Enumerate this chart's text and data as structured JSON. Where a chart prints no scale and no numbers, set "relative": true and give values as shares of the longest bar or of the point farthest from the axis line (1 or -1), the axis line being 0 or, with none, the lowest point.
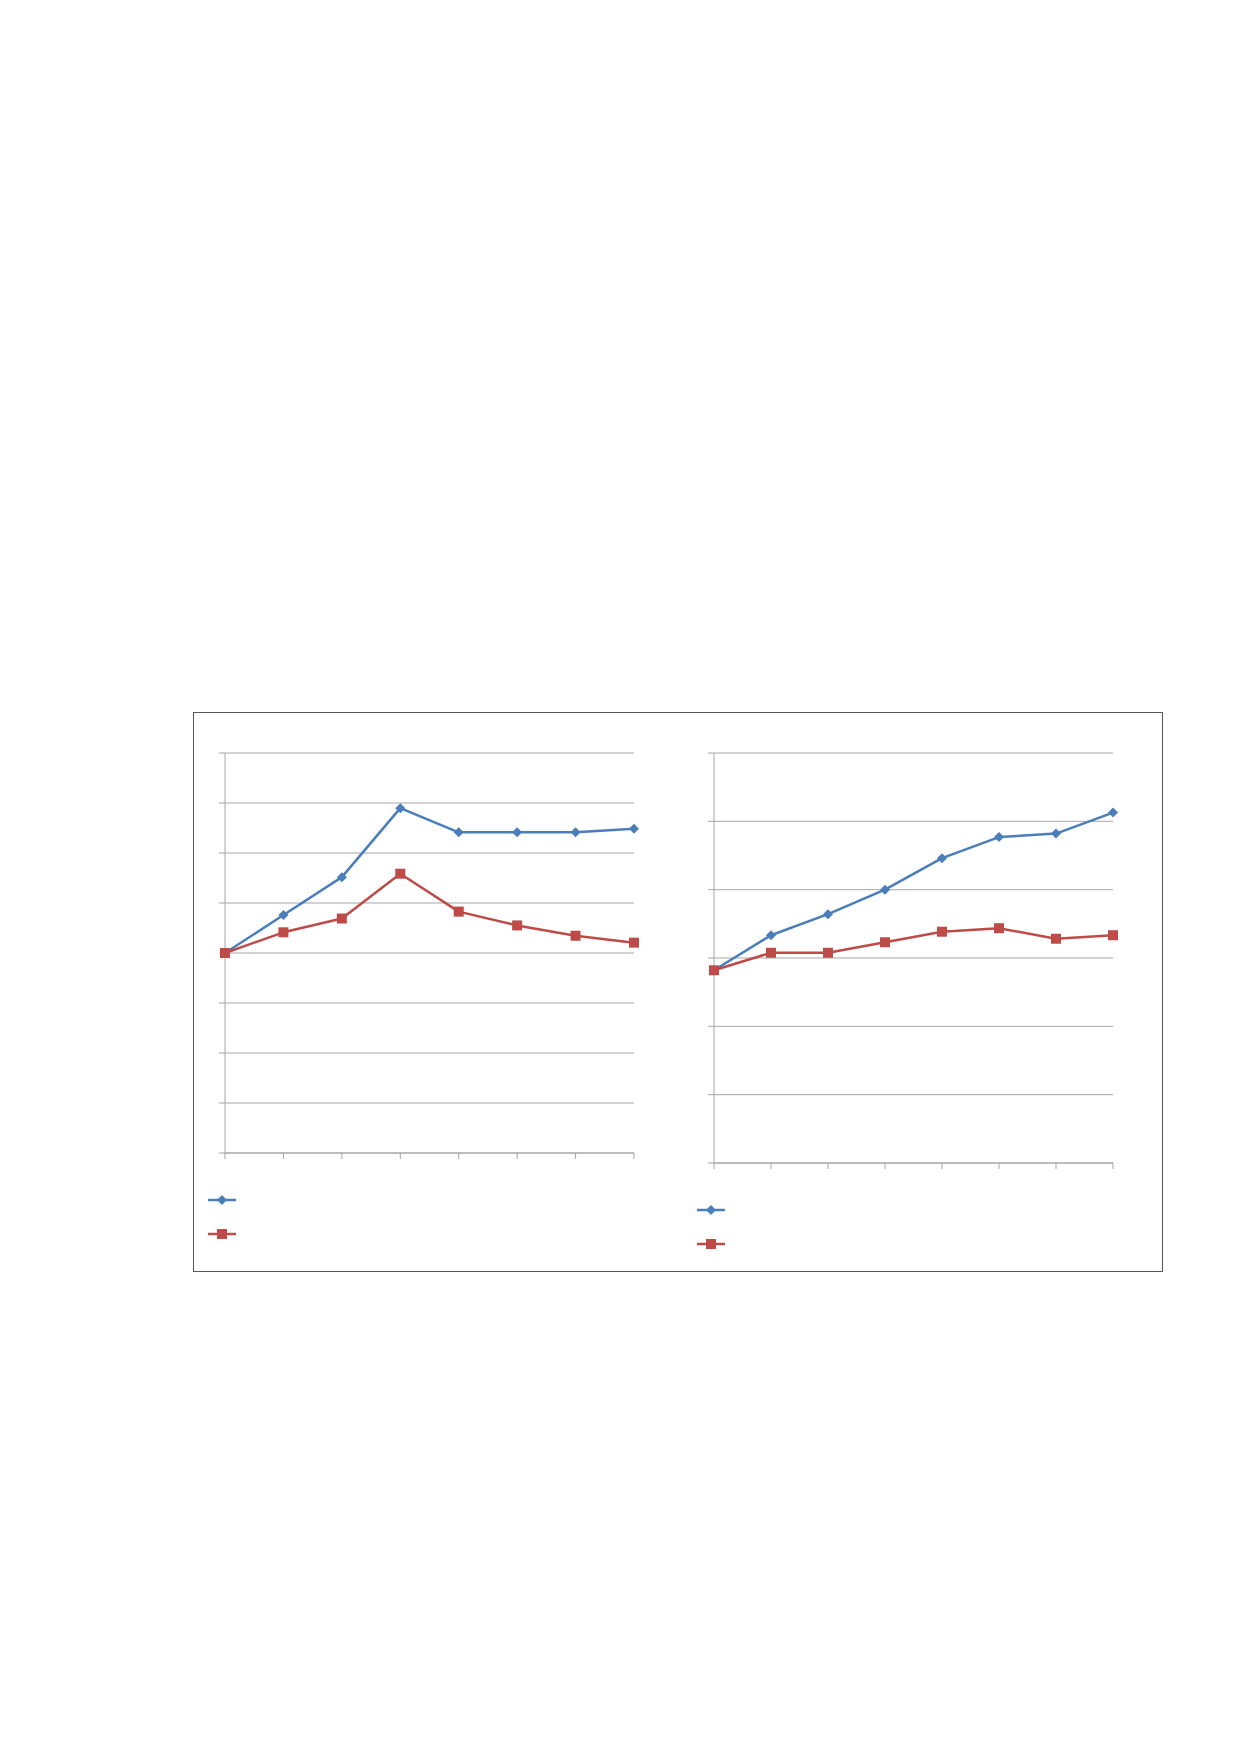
{
  "chart_data": [
    {
      "type": "line",
      "relative": true,
      "categories": [
        null,
        null,
        null,
        null,
        null,
        null,
        null,
        null
      ],
      "grid": "y",
      "series": [
        {
          "color": "#4a7ebb",
          "marker": "diamond",
          "values": [
            0.58,
            0.69,
            0.8,
            1,
            0.93,
            0.93,
            0.93,
            0.94
          ]
        },
        {
          "color": "#be4b48",
          "marker": "square",
          "values": [
            0.58,
            0.64,
            0.68,
            0.81,
            0.7,
            0.66,
            0.63,
            0.61
          ]
        }
      ]
    },
    {
      "type": "line",
      "relative": true,
      "categories": [
        null,
        null,
        null,
        null,
        null,
        null,
        null,
        null
      ],
      "grid": "y",
      "series": [
        {
          "color": "#4a7ebb",
          "marker": "diamond",
          "values": [
            0.55,
            0.65,
            0.71,
            0.78,
            0.87,
            0.93,
            0.94,
            1
          ]
        },
        {
          "color": "#be4b48",
          "marker": "square",
          "values": [
            0.55,
            0.6,
            0.6,
            0.63,
            0.66,
            0.67,
            0.64,
            0.65
          ]
        }
      ]
    }
  ]
}
